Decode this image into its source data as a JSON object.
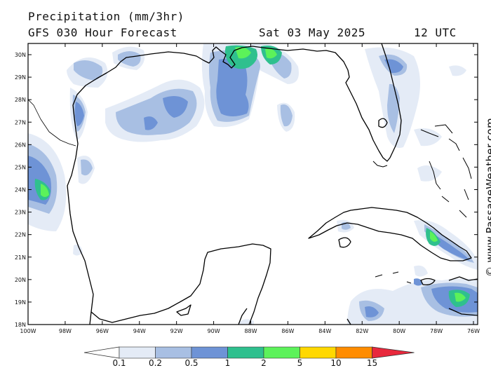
{
  "header": {
    "title": "Precipitation (mm/3hr)",
    "model": "GFS 030 Hour Forecast",
    "date": "Sat 03 May 2025",
    "hour": "12 UTC"
  },
  "axes": {
    "lat_labels": [
      "30N",
      "29N",
      "28N",
      "27N",
      "26N",
      "25N",
      "24N",
      "23N",
      "22N",
      "21N",
      "20N",
      "19N",
      "18N"
    ],
    "lon_labels": [
      "100W",
      "98W",
      "96W",
      "94W",
      "92W",
      "90W",
      "88W",
      "86W",
      "84W",
      "82W",
      "80W",
      "78W",
      "76W"
    ]
  },
  "legend": {
    "levels": [
      "0.1",
      "0.2",
      "0.5",
      "1",
      "2",
      "5",
      "10",
      "15"
    ],
    "colors": [
      "#ffffff",
      "#e4ebf6",
      "#a8bfe3",
      "#6e93d6",
      "#2fc08e",
      "#5cf25a",
      "#ffd800",
      "#ff8c00",
      "#e8283c"
    ]
  },
  "credit": "© www.PassageWeather.com"
}
